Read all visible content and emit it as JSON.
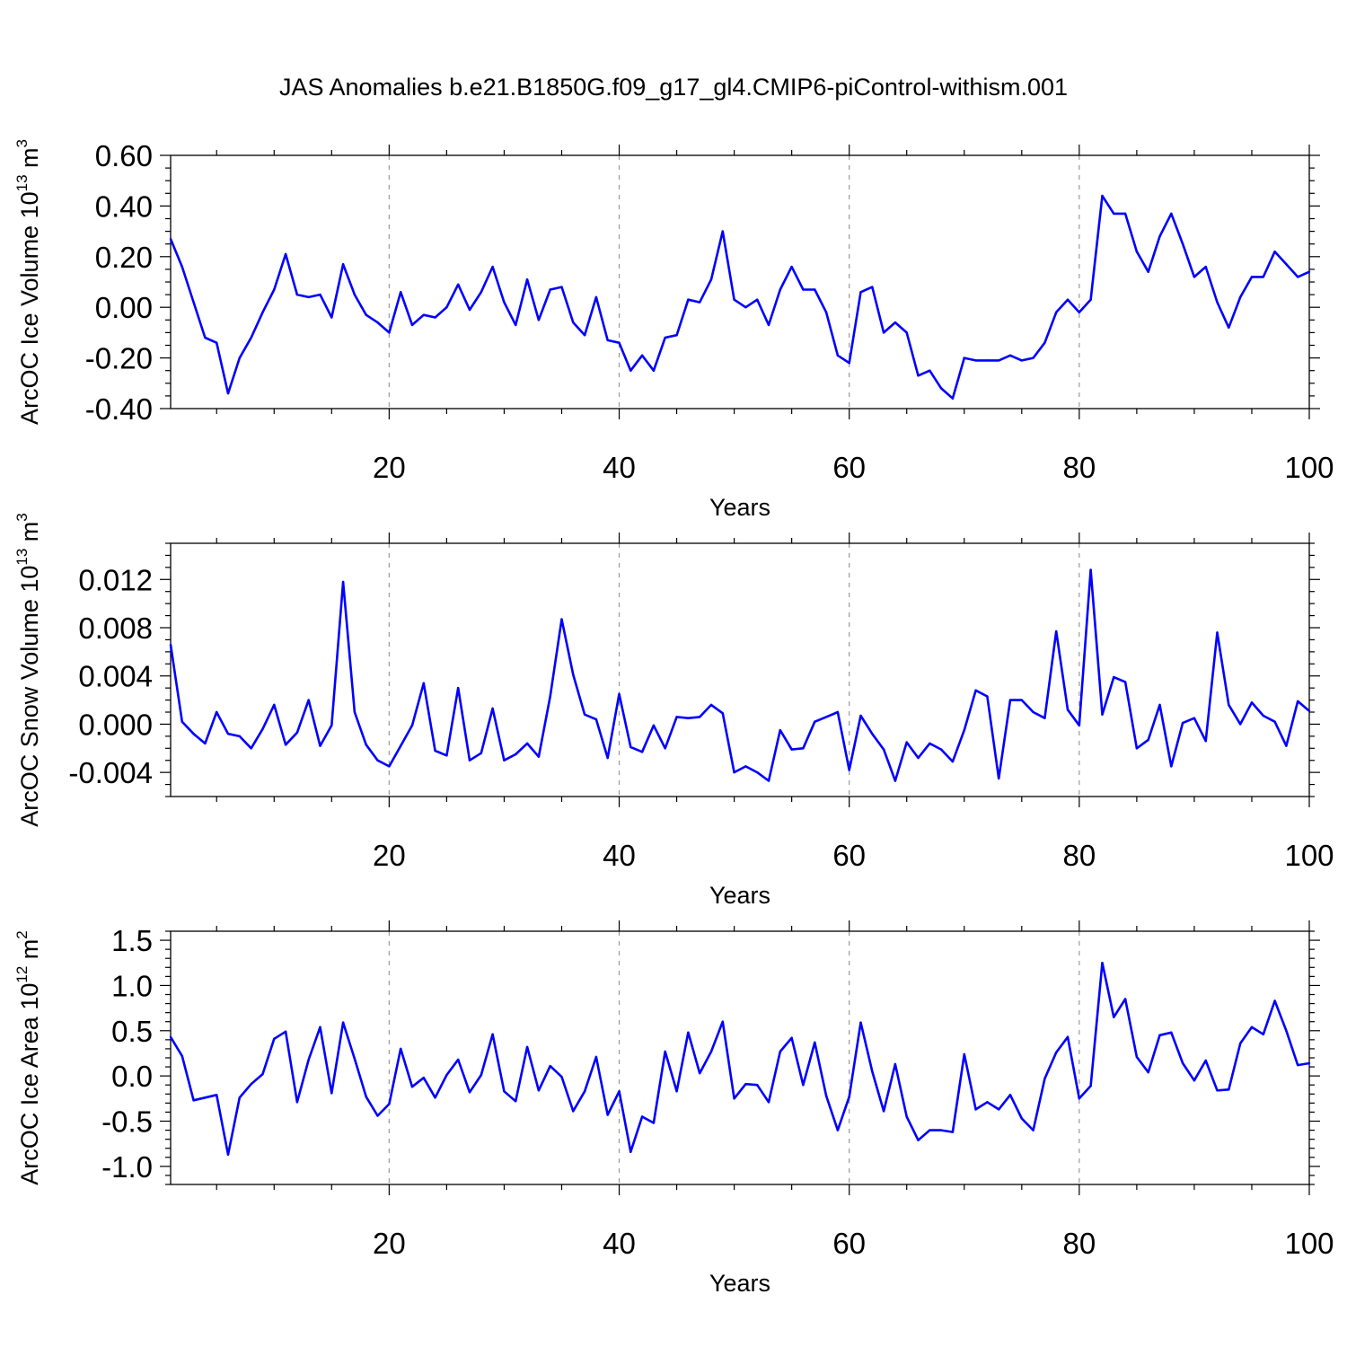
{
  "title": "JAS Anomalies b.e21.B1850G.f09_g17_gl4.CMIP6-piControl-withism.001",
  "colors": {
    "series": "#0000ff",
    "axis": "#000000",
    "grid": "#999999"
  },
  "chart_data": [
    {
      "type": "line",
      "name": "ice-volume",
      "ylabel_main": "ArcOC Ice Volume 10",
      "ylabel_sup": "13",
      "ylabel_unit": " m",
      "ylabel_unit_sup": "3",
      "xlabel": "Years",
      "xlim": [
        1,
        100
      ],
      "ylim": [
        -0.4,
        0.6
      ],
      "x_ticks": [
        20,
        40,
        60,
        80,
        100
      ],
      "x_tick_labels": [
        "20",
        "40",
        "60",
        "80",
        "100"
      ],
      "y_ticks": [
        -0.4,
        -0.2,
        0.0,
        0.2,
        0.4,
        0.6
      ],
      "y_tick_labels": [
        "-0.40",
        "-0.20",
        "0.00",
        "0.20",
        "0.40",
        "0.60"
      ],
      "y_minor_step": 0.05,
      "vgrid": [
        20,
        40,
        60,
        80
      ],
      "x": [
        1,
        2,
        3,
        4,
        5,
        6,
        7,
        8,
        9,
        10,
        11,
        12,
        13,
        14,
        15,
        16,
        17,
        18,
        19,
        20,
        21,
        22,
        23,
        24,
        25,
        26,
        27,
        28,
        29,
        30,
        31,
        32,
        33,
        34,
        35,
        36,
        37,
        38,
        39,
        40,
        41,
        42,
        43,
        44,
        45,
        46,
        47,
        48,
        49,
        50,
        51,
        52,
        53,
        54,
        55,
        56,
        57,
        58,
        59,
        60,
        61,
        62,
        63,
        64,
        65,
        66,
        67,
        68,
        69,
        70,
        71,
        72,
        73,
        74,
        75,
        76,
        77,
        78,
        79,
        80,
        81,
        82,
        83,
        84,
        85,
        86,
        87,
        88,
        89,
        90,
        91,
        92,
        93,
        94,
        95,
        96,
        97,
        98,
        99,
        100
      ],
      "values": [
        0.27,
        0.16,
        0.02,
        -0.12,
        -0.14,
        -0.34,
        -0.2,
        -0.12,
        -0.02,
        0.07,
        0.21,
        0.05,
        0.04,
        0.05,
        -0.04,
        0.17,
        0.05,
        -0.03,
        -0.06,
        -0.1,
        0.06,
        -0.07,
        -0.03,
        -0.04,
        0.0,
        0.09,
        -0.01,
        0.06,
        0.16,
        0.02,
        -0.07,
        0.11,
        -0.05,
        0.07,
        0.08,
        -0.06,
        -0.11,
        0.04,
        -0.13,
        -0.14,
        -0.25,
        -0.19,
        -0.25,
        -0.12,
        -0.11,
        0.03,
        0.02,
        0.11,
        0.3,
        0.03,
        0.0,
        0.03,
        -0.07,
        0.07,
        0.16,
        0.07,
        0.07,
        -0.02,
        -0.19,
        -0.22,
        0.06,
        0.08,
        -0.1,
        -0.06,
        -0.1,
        -0.27,
        -0.25,
        -0.32,
        -0.36,
        -0.2,
        -0.21,
        -0.21,
        -0.21,
        -0.19,
        -0.21,
        -0.2,
        -0.14,
        -0.02,
        0.03,
        -0.02,
        0.03,
        0.44,
        0.37,
        0.37,
        0.22,
        0.14,
        0.28,
        0.37,
        0.25,
        0.12,
        0.16,
        0.02,
        -0.08,
        0.04,
        0.12,
        0.12,
        0.22,
        0.17,
        0.12,
        0.14
      ]
    },
    {
      "type": "line",
      "name": "snow-volume",
      "ylabel_main": "ArcOC Snow Volume 10",
      "ylabel_sup": "13",
      "ylabel_unit": " m",
      "ylabel_unit_sup": "3",
      "xlabel": "Years",
      "xlim": [
        1,
        100
      ],
      "ylim": [
        -0.006,
        0.015
      ],
      "x_ticks": [
        20,
        40,
        60,
        80,
        100
      ],
      "x_tick_labels": [
        "20",
        "40",
        "60",
        "80",
        "100"
      ],
      "y_ticks": [
        -0.004,
        0.0,
        0.004,
        0.008,
        0.012
      ],
      "y_tick_labels": [
        "-0.004",
        "0.000",
        "0.004",
        "0.008",
        "0.012"
      ],
      "y_minor_step": 0.001,
      "vgrid": [
        20,
        40,
        60,
        80
      ],
      "x": [
        1,
        2,
        3,
        4,
        5,
        6,
        7,
        8,
        9,
        10,
        11,
        12,
        13,
        14,
        15,
        16,
        17,
        18,
        19,
        20,
        21,
        22,
        23,
        24,
        25,
        26,
        27,
        28,
        29,
        30,
        31,
        32,
        33,
        34,
        35,
        36,
        37,
        38,
        39,
        40,
        41,
        42,
        43,
        44,
        45,
        46,
        47,
        48,
        49,
        50,
        51,
        52,
        53,
        54,
        55,
        56,
        57,
        58,
        59,
        60,
        61,
        62,
        63,
        64,
        65,
        66,
        67,
        68,
        69,
        70,
        71,
        72,
        73,
        74,
        75,
        76,
        77,
        78,
        79,
        80,
        81,
        82,
        83,
        84,
        85,
        86,
        87,
        88,
        89,
        90,
        91,
        92,
        93,
        94,
        95,
        96,
        97,
        98,
        99,
        100
      ],
      "values": [
        0.0066,
        0.0002,
        -0.0008,
        -0.0016,
        0.001,
        -0.0008,
        -0.001,
        -0.002,
        -0.0004,
        0.0016,
        -0.0017,
        -0.0007,
        0.002,
        -0.0018,
        -0.0001,
        0.0118,
        0.001,
        -0.0017,
        -0.003,
        -0.0035,
        -0.0018,
        -0.0001,
        0.0034,
        -0.0022,
        -0.0026,
        0.003,
        -0.003,
        -0.0024,
        0.0013,
        -0.003,
        -0.0025,
        -0.0016,
        -0.0027,
        0.0023,
        0.0087,
        0.0041,
        0.0008,
        0.0004,
        -0.0028,
        0.0025,
        -0.0019,
        -0.0023,
        -0.0001,
        -0.002,
        0.0006,
        0.0005,
        0.0006,
        0.0016,
        0.0009,
        -0.004,
        -0.0035,
        -0.004,
        -0.0047,
        -0.0005,
        -0.0021,
        -0.002,
        0.0002,
        0.0006,
        0.001,
        -0.0038,
        0.0007,
        -0.0008,
        -0.0021,
        -0.0047,
        -0.0015,
        -0.0028,
        -0.0016,
        -0.0021,
        -0.0031,
        -0.0005,
        0.0028,
        0.0023,
        -0.0045,
        0.002,
        0.002,
        0.001,
        0.0005,
        0.0077,
        0.0012,
        -0.0001,
        0.0128,
        0.0008,
        0.0039,
        0.0035,
        -0.002,
        -0.0013,
        0.0016,
        -0.0035,
        0.0001,
        0.0005,
        -0.0014,
        0.0076,
        0.0016,
        0.0,
        0.0018,
        0.0007,
        0.0002,
        -0.0018,
        0.0019,
        0.0011
      ]
    },
    {
      "type": "line",
      "name": "ice-area",
      "ylabel_main": "ArcOC Ice Area 10",
      "ylabel_sup": "12",
      "ylabel_unit": " m",
      "ylabel_unit_sup": "2",
      "xlabel": "Years",
      "xlim": [
        1,
        100
      ],
      "ylim": [
        -1.2,
        1.6
      ],
      "x_ticks": [
        20,
        40,
        60,
        80,
        100
      ],
      "x_tick_labels": [
        "20",
        "40",
        "60",
        "80",
        "100"
      ],
      "y_ticks": [
        -1.0,
        -0.5,
        0.0,
        0.5,
        1.0,
        1.5
      ],
      "y_tick_labels": [
        "-1.0",
        "-0.5",
        "0.0",
        "0.5",
        "1.0",
        "1.5"
      ],
      "y_minor_step": 0.1,
      "vgrid": [
        20,
        40,
        60,
        80
      ],
      "x": [
        1,
        2,
        3,
        4,
        5,
        6,
        7,
        8,
        9,
        10,
        11,
        12,
        13,
        14,
        15,
        16,
        17,
        18,
        19,
        20,
        21,
        22,
        23,
        24,
        25,
        26,
        27,
        28,
        29,
        30,
        31,
        32,
        33,
        34,
        35,
        36,
        37,
        38,
        39,
        40,
        41,
        42,
        43,
        44,
        45,
        46,
        47,
        48,
        49,
        50,
        51,
        52,
        53,
        54,
        55,
        56,
        57,
        58,
        59,
        60,
        61,
        62,
        63,
        64,
        65,
        66,
        67,
        68,
        69,
        70,
        71,
        72,
        73,
        74,
        75,
        76,
        77,
        78,
        79,
        80,
        81,
        82,
        83,
        84,
        85,
        86,
        87,
        88,
        89,
        90,
        91,
        92,
        93,
        94,
        95,
        96,
        97,
        98,
        99,
        100
      ],
      "values": [
        0.43,
        0.22,
        -0.27,
        -0.24,
        -0.21,
        -0.87,
        -0.24,
        -0.09,
        0.02,
        0.41,
        0.49,
        -0.29,
        0.18,
        0.54,
        -0.19,
        0.59,
        0.19,
        -0.23,
        -0.44,
        -0.31,
        0.3,
        -0.12,
        -0.02,
        -0.24,
        0.01,
        0.18,
        -0.18,
        0.01,
        0.46,
        -0.17,
        -0.28,
        0.32,
        -0.16,
        0.11,
        -0.01,
        -0.39,
        -0.17,
        0.21,
        -0.43,
        -0.17,
        -0.84,
        -0.45,
        -0.52,
        0.27,
        -0.17,
        0.48,
        0.03,
        0.27,
        0.6,
        -0.25,
        -0.09,
        -0.1,
        -0.29,
        0.27,
        0.42,
        -0.1,
        0.37,
        -0.22,
        -0.6,
        -0.23,
        0.59,
        0.05,
        -0.39,
        0.13,
        -0.45,
        -0.71,
        -0.6,
        -0.6,
        -0.62,
        0.24,
        -0.37,
        -0.29,
        -0.37,
        -0.21,
        -0.47,
        -0.6,
        -0.03,
        0.26,
        0.43,
        -0.25,
        -0.11,
        1.25,
        0.65,
        0.85,
        0.21,
        0.04,
        0.45,
        0.48,
        0.14,
        -0.05,
        0.17,
        -0.16,
        -0.15,
        0.36,
        0.54,
        0.46,
        0.83,
        0.5,
        0.12,
        0.14
      ]
    }
  ]
}
